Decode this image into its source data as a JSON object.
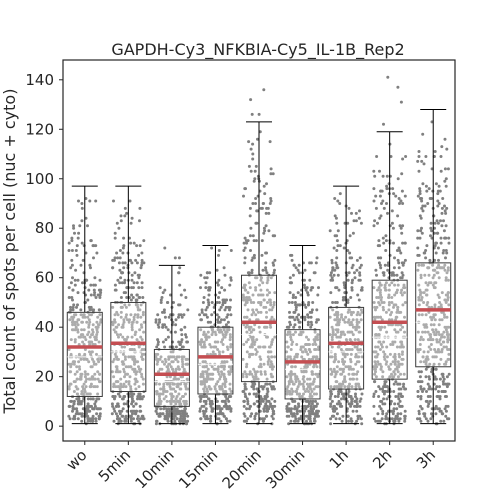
{
  "chart_data": {
    "type": "box",
    "title": "GAPDH-Cy3_NFKBIA-Cy5_IL-1B_Rep2",
    "xlabel": "",
    "ylabel": "Total count of spots per cell (nuc + cyto)",
    "ylim": [
      -6,
      148
    ],
    "yticks": [
      0,
      20,
      40,
      60,
      80,
      100,
      120,
      140
    ],
    "grid": false,
    "categories": [
      "wo",
      "5min",
      "10min",
      "15min",
      "20min",
      "30min",
      "1h",
      "2h",
      "3h"
    ],
    "boxes": [
      {
        "label": "wo",
        "q1": 12,
        "median": 28,
        "q3": 46,
        "whisker_low": 1,
        "whisker_high": 97,
        "mean": 32,
        "max_point": 97,
        "n": 420
      },
      {
        "label": "5min",
        "q1": 14,
        "median": 30,
        "q3": 50,
        "whisker_low": 1,
        "whisker_high": 97,
        "mean": 33.5,
        "max_point": 97,
        "n": 420
      },
      {
        "label": "10min",
        "q1": 8,
        "median": 18,
        "q3": 31,
        "whisker_low": 1,
        "whisker_high": 65,
        "mean": 21,
        "max_point": 72,
        "n": 380
      },
      {
        "label": "15min",
        "q1": 13,
        "median": 25,
        "q3": 40,
        "whisker_low": 1,
        "whisker_high": 73,
        "mean": 28,
        "max_point": 73,
        "n": 400
      },
      {
        "label": "20min",
        "q1": 18,
        "median": 37,
        "q3": 61,
        "whisker_low": 1,
        "whisker_high": 123,
        "mean": 42,
        "max_point": 136,
        "n": 420
      },
      {
        "label": "30min",
        "q1": 11,
        "median": 23,
        "q3": 39,
        "whisker_low": 1,
        "whisker_high": 73,
        "mean": 26,
        "max_point": 73,
        "n": 420
      },
      {
        "label": "1h",
        "q1": 15,
        "median": 30,
        "q3": 48,
        "whisker_low": 1,
        "whisker_high": 97,
        "mean": 33.5,
        "max_point": 97,
        "n": 420
      },
      {
        "label": "2h",
        "q1": 19,
        "median": 36,
        "q3": 59,
        "whisker_low": 1,
        "whisker_high": 119,
        "mean": 42,
        "max_point": 141,
        "n": 440
      },
      {
        "label": "3h",
        "q1": 24,
        "median": 42,
        "q3": 66,
        "whisker_low": 1,
        "whisker_high": 128,
        "mean": 47,
        "max_point": 128,
        "n": 440
      }
    ],
    "colors": {
      "points": "#808080",
      "mean_line": "#c44e52",
      "box": "#000000",
      "axis": "#262626"
    }
  }
}
